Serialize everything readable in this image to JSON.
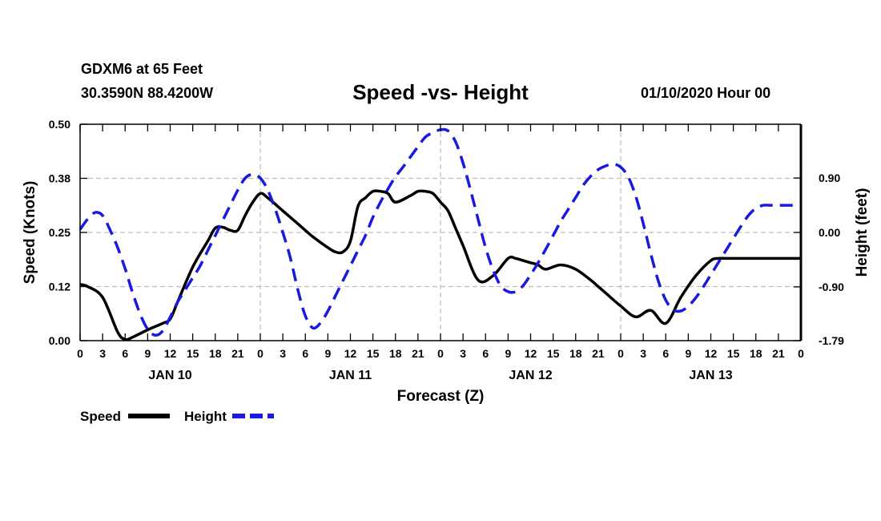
{
  "header": {
    "station": "GDXM6 at 65 Feet",
    "coords": "30.3590N 88.4200W",
    "title": "Speed -vs- Height",
    "date": "01/10/2020 Hour 00"
  },
  "chart_data": {
    "type": "line",
    "title": "Speed -vs- Height",
    "xlabel": "Forecast (Z)",
    "ylabel_left": "Speed (Knots)",
    "ylabel_right": "Height (feet)",
    "x_unit": "forecast hour",
    "xlim": [
      0,
      96
    ],
    "ylim_left": [
      0,
      0.5
    ],
    "ylim_right": [
      -1.79,
      1.79
    ],
    "left_ticks": [
      "0.00",
      "0.12",
      "0.25",
      "0.38",
      "0.50"
    ],
    "left_tick_values": [
      0,
      0.125,
      0.25,
      0.375,
      0.5
    ],
    "right_ticks": [
      "-1.79",
      "-0.90",
      "0.00",
      "0.90"
    ],
    "right_tick_values": [
      -1.79,
      -0.9,
      0.0,
      0.9
    ],
    "x_ticks": [
      0,
      3,
      6,
      9,
      12,
      15,
      18,
      21,
      24,
      27,
      30,
      33,
      36,
      39,
      42,
      45,
      48,
      51,
      54,
      57,
      60,
      63,
      66,
      69,
      72,
      75,
      78,
      81,
      84,
      87,
      90,
      93,
      96
    ],
    "x_tick_labels": [
      "0",
      "3",
      "6",
      "9",
      "12",
      "15",
      "18",
      "21",
      "0",
      "3",
      "6",
      "9",
      "12",
      "15",
      "18",
      "21",
      "0",
      "3",
      "6",
      "9",
      "12",
      "15",
      "18",
      "21",
      "0",
      "3",
      "6",
      "9",
      "12",
      "15",
      "18",
      "21",
      "0"
    ],
    "day_labels": [
      {
        "x": 12,
        "label": "JAN 10"
      },
      {
        "x": 36,
        "label": "JAN 11"
      },
      {
        "x": 60,
        "label": "JAN 12"
      },
      {
        "x": 84,
        "label": "JAN 13"
      }
    ],
    "grid": true,
    "legend_position": "bottom-left",
    "series": [
      {
        "name": "Speed",
        "axis": "left",
        "style": "solid",
        "color": "#000000",
        "x": [
          0,
          1,
          3,
          5,
          6,
          7,
          9,
          11,
          12,
          13,
          15,
          17,
          18,
          19,
          20,
          21,
          22,
          23,
          24,
          25,
          27,
          29,
          31,
          33,
          34,
          35,
          36,
          37,
          38,
          39,
          40,
          41,
          42,
          44,
          45,
          46,
          47,
          48,
          49,
          50,
          51,
          53,
          55,
          57,
          58,
          59,
          60,
          61,
          62,
          64,
          66,
          68,
          69,
          70,
          72,
          74,
          76,
          78,
          80,
          82,
          84,
          85,
          86,
          87,
          88,
          90,
          92,
          94,
          95,
          96
        ],
        "y": [
          0.13,
          0.125,
          0.1,
          0.02,
          0.003,
          0.008,
          0.025,
          0.04,
          0.05,
          0.09,
          0.17,
          0.23,
          0.26,
          0.262,
          0.255,
          0.255,
          0.29,
          0.32,
          0.34,
          0.33,
          0.3,
          0.27,
          0.24,
          0.215,
          0.205,
          0.205,
          0.23,
          0.31,
          0.33,
          0.345,
          0.345,
          0.34,
          0.32,
          0.335,
          0.345,
          0.345,
          0.34,
          0.32,
          0.3,
          0.26,
          0.22,
          0.14,
          0.15,
          0.19,
          0.19,
          0.185,
          0.18,
          0.175,
          0.165,
          0.175,
          0.165,
          0.14,
          0.125,
          0.11,
          0.08,
          0.055,
          0.07,
          0.04,
          0.1,
          0.15,
          0.185,
          0.19,
          0.19,
          0.19,
          0.19,
          0.19,
          0.19,
          0.19,
          0.19,
          0.19
        ]
      },
      {
        "name": "Height",
        "axis": "right",
        "style": "dashed",
        "color": "#1a1adc",
        "x": [
          0,
          1,
          2,
          3,
          4,
          5,
          6,
          7,
          8,
          9,
          10,
          11,
          12,
          13,
          14,
          15,
          16,
          17,
          18,
          19,
          20,
          21,
          22,
          23,
          24,
          25,
          26,
          27,
          28,
          29,
          30,
          31,
          32,
          33,
          34,
          35,
          36,
          37,
          38,
          39,
          40,
          41,
          42,
          43,
          44,
          45,
          46,
          47,
          48,
          49,
          50,
          51,
          52,
          53,
          54,
          55,
          56,
          57,
          58,
          59,
          60,
          61,
          62,
          63,
          64,
          65,
          66,
          67,
          68,
          69,
          70,
          71,
          72,
          73,
          74,
          75,
          76,
          77,
          78,
          79,
          80,
          81,
          82,
          83,
          84,
          85,
          86,
          87,
          88,
          89,
          90,
          91,
          92,
          93,
          94,
          95,
          96
        ],
        "y": [
          0.05,
          0.22,
          0.33,
          0.28,
          0.04,
          -0.25,
          -0.6,
          -1.0,
          -1.35,
          -1.6,
          -1.7,
          -1.63,
          -1.4,
          -1.15,
          -0.95,
          -0.75,
          -0.55,
          -0.3,
          -0.05,
          0.2,
          0.45,
          0.7,
          0.9,
          0.96,
          0.9,
          0.7,
          0.38,
          0.0,
          -0.42,
          -0.95,
          -1.38,
          -1.58,
          -1.5,
          -1.3,
          -1.05,
          -0.8,
          -0.55,
          -0.3,
          -0.05,
          0.25,
          0.5,
          0.72,
          0.92,
          1.08,
          1.25,
          1.42,
          1.58,
          1.65,
          1.7,
          1.68,
          1.5,
          1.15,
          0.7,
          0.22,
          -0.25,
          -0.62,
          -0.88,
          -0.98,
          -0.98,
          -0.88,
          -0.7,
          -0.5,
          -0.28,
          -0.05,
          0.18,
          0.38,
          0.58,
          0.78,
          0.93,
          1.04,
          1.1,
          1.13,
          1.08,
          0.92,
          0.6,
          0.15,
          -0.35,
          -0.8,
          -1.12,
          -1.28,
          -1.3,
          -1.22,
          -1.08,
          -0.9,
          -0.7,
          -0.5,
          -0.3,
          -0.1,
          0.1,
          0.28,
          0.4,
          0.45,
          0.45,
          0.45,
          0.45,
          0.45,
          0.45
        ]
      }
    ]
  },
  "legend": {
    "speed_label": "Speed",
    "height_label": "Height"
  }
}
